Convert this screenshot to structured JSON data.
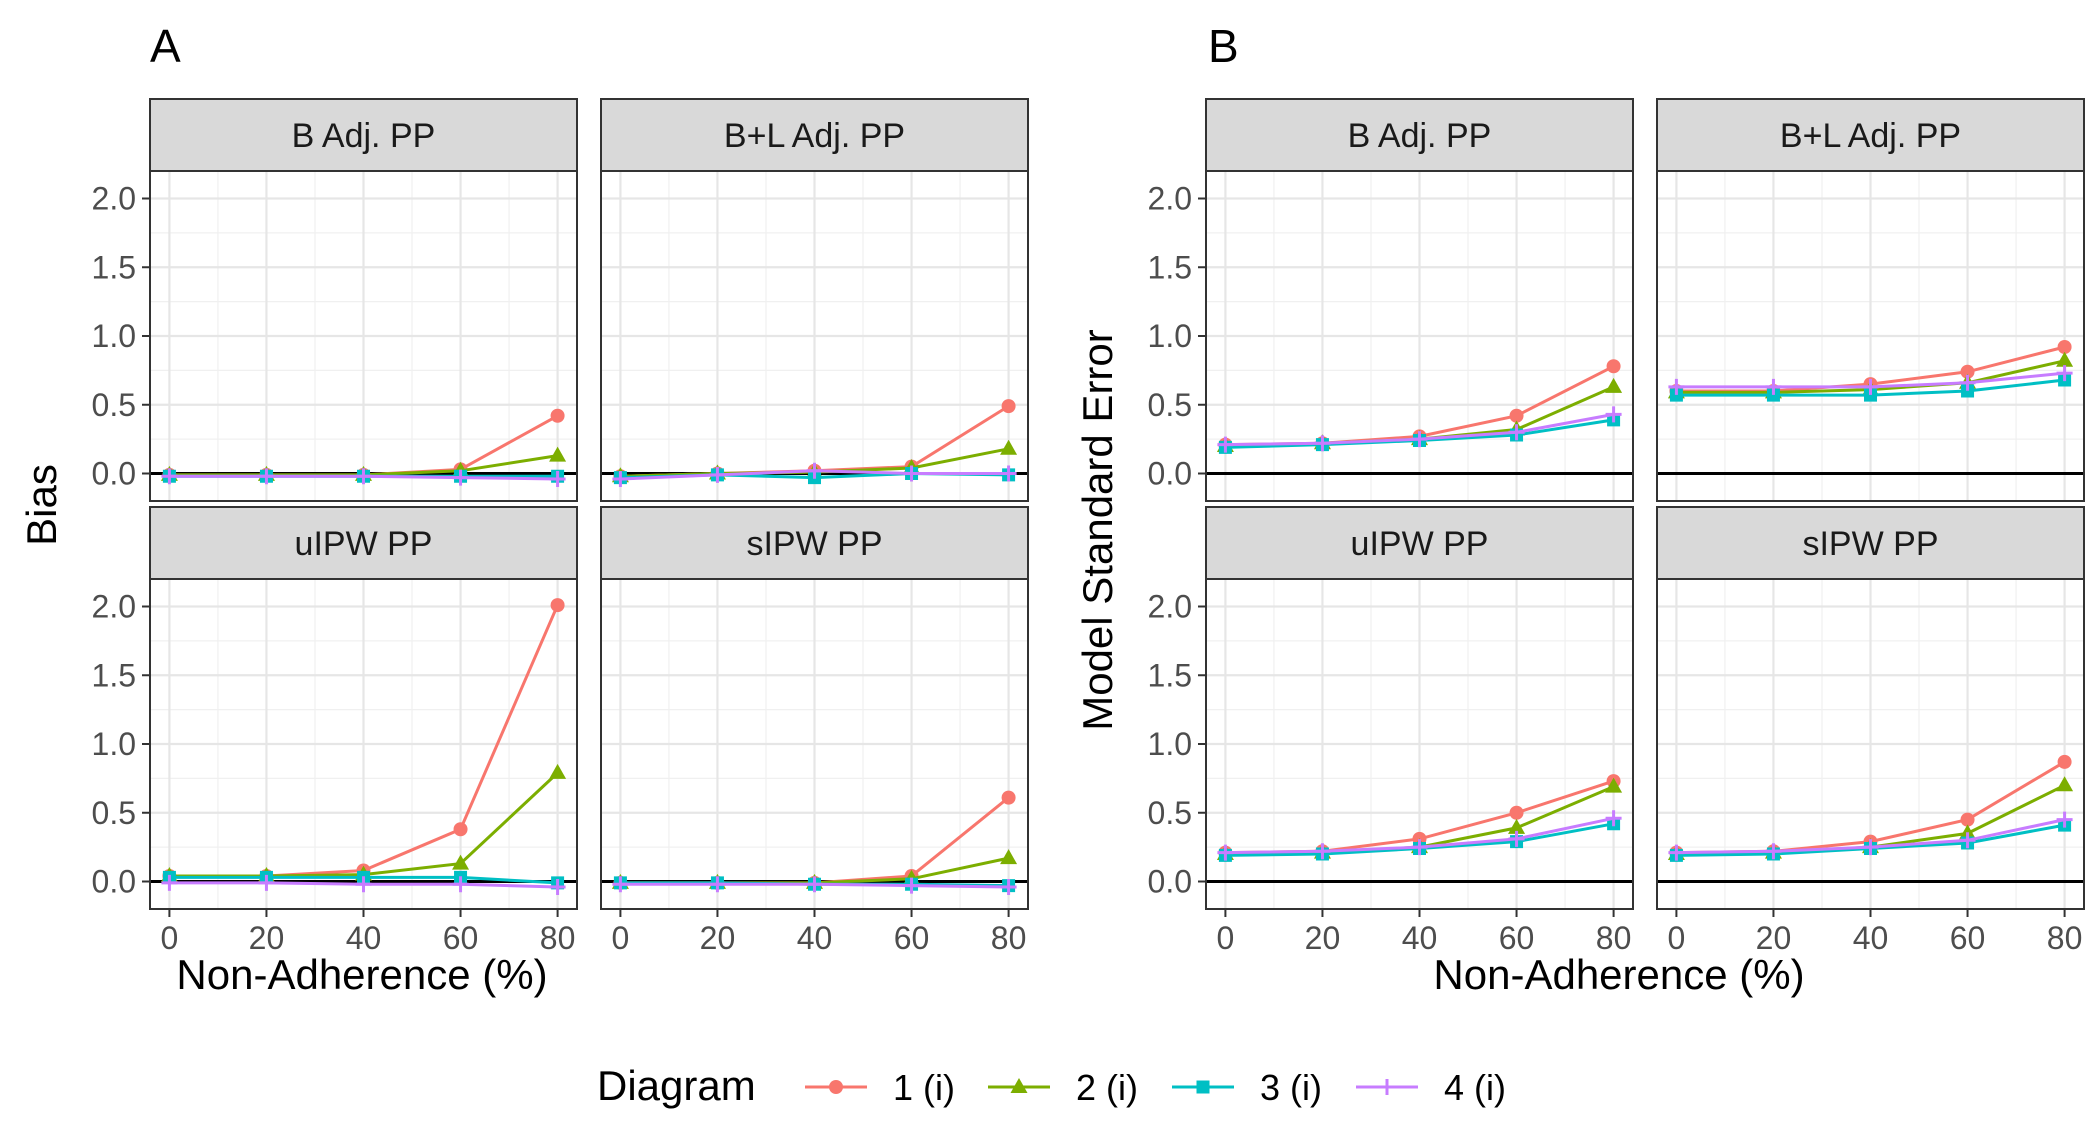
{
  "chart_data": [
    {
      "type": "line",
      "panel_label": "A",
      "xlabel": "Non-Adherence (%)",
      "ylabel": "Bias",
      "x": [
        0,
        20,
        40,
        60,
        80
      ],
      "xticks": [
        "0",
        "20",
        "40",
        "60",
        "80"
      ],
      "yticks": [
        "0.0",
        "0.5",
        "1.0",
        "1.5",
        "2.0"
      ],
      "xlim": [
        -4,
        84
      ],
      "ylim": [
        -0.2,
        2.2
      ],
      "grid": true,
      "reference_line_y": 0,
      "facets": [
        {
          "title": "B Adj. PP",
          "series": [
            {
              "name": "1 (i)",
              "values": [
                -0.01,
                -0.01,
                -0.01,
                0.03,
                0.42
              ]
            },
            {
              "name": "2 (i)",
              "values": [
                -0.01,
                -0.01,
                -0.01,
                0.02,
                0.13
              ]
            },
            {
              "name": "3 (i)",
              "values": [
                -0.02,
                -0.02,
                -0.02,
                -0.02,
                -0.02
              ]
            },
            {
              "name": "4 (i)",
              "values": [
                -0.02,
                -0.02,
                -0.02,
                -0.03,
                -0.04
              ]
            }
          ]
        },
        {
          "title": "B+L Adj. PP",
          "series": [
            {
              "name": "1 (i)",
              "values": [
                -0.02,
                0.0,
                0.02,
                0.05,
                0.49
              ]
            },
            {
              "name": "2 (i)",
              "values": [
                -0.02,
                0.0,
                0.01,
                0.04,
                0.18
              ]
            },
            {
              "name": "3 (i)",
              "values": [
                -0.03,
                -0.01,
                -0.03,
                0.0,
                -0.01
              ]
            },
            {
              "name": "4 (i)",
              "values": [
                -0.04,
                -0.01,
                0.02,
                0.0,
                0.0
              ]
            }
          ]
        },
        {
          "title": "uIPW PP",
          "series": [
            {
              "name": "1 (i)",
              "values": [
                0.04,
                0.04,
                0.08,
                0.38,
                2.01
              ]
            },
            {
              "name": "2 (i)",
              "values": [
                0.04,
                0.04,
                0.05,
                0.13,
                0.79
              ]
            },
            {
              "name": "3 (i)",
              "values": [
                0.03,
                0.03,
                0.03,
                0.03,
                -0.01
              ]
            },
            {
              "name": "4 (i)",
              "values": [
                -0.01,
                -0.01,
                -0.02,
                -0.02,
                -0.04
              ]
            }
          ]
        },
        {
          "title": "sIPW PP",
          "series": [
            {
              "name": "1 (i)",
              "values": [
                -0.01,
                -0.01,
                -0.01,
                0.04,
                0.61
              ]
            },
            {
              "name": "2 (i)",
              "values": [
                -0.01,
                -0.01,
                -0.01,
                0.02,
                0.17
              ]
            },
            {
              "name": "3 (i)",
              "values": [
                -0.01,
                -0.01,
                -0.02,
                -0.02,
                -0.03
              ]
            },
            {
              "name": "4 (i)",
              "values": [
                -0.02,
                -0.02,
                -0.02,
                -0.03,
                -0.04
              ]
            }
          ]
        }
      ]
    },
    {
      "type": "line",
      "panel_label": "B",
      "xlabel": "Non-Adherence (%)",
      "ylabel": "Model Standard Error",
      "x": [
        0,
        20,
        40,
        60,
        80
      ],
      "xticks": [
        "0",
        "20",
        "40",
        "60",
        "80"
      ],
      "yticks": [
        "0.0",
        "0.5",
        "1.0",
        "1.5",
        "2.0"
      ],
      "xlim": [
        -4,
        84
      ],
      "ylim": [
        -0.2,
        2.2
      ],
      "grid": true,
      "reference_line_y": 0,
      "facets": [
        {
          "title": "B Adj. PP",
          "series": [
            {
              "name": "1 (i)",
              "values": [
                0.21,
                0.22,
                0.27,
                0.42,
                0.78
              ]
            },
            {
              "name": "2 (i)",
              "values": [
                0.2,
                0.22,
                0.25,
                0.32,
                0.63
              ]
            },
            {
              "name": "3 (i)",
              "values": [
                0.19,
                0.21,
                0.24,
                0.28,
                0.39
              ]
            },
            {
              "name": "4 (i)",
              "values": [
                0.21,
                0.22,
                0.25,
                0.3,
                0.43
              ]
            }
          ]
        },
        {
          "title": "B+L Adj. PP",
          "series": [
            {
              "name": "1 (i)",
              "values": [
                0.6,
                0.6,
                0.65,
                0.74,
                0.92
              ]
            },
            {
              "name": "2 (i)",
              "values": [
                0.59,
                0.59,
                0.61,
                0.66,
                0.82
              ]
            },
            {
              "name": "3 (i)",
              "values": [
                0.57,
                0.57,
                0.57,
                0.6,
                0.68
              ]
            },
            {
              "name": "4 (i)",
              "values": [
                0.63,
                0.63,
                0.63,
                0.66,
                0.73
              ]
            }
          ]
        },
        {
          "title": "uIPW PP",
          "series": [
            {
              "name": "1 (i)",
              "values": [
                0.21,
                0.22,
                0.31,
                0.5,
                0.73
              ]
            },
            {
              "name": "2 (i)",
              "values": [
                0.2,
                0.21,
                0.25,
                0.39,
                0.69
              ]
            },
            {
              "name": "3 (i)",
              "values": [
                0.19,
                0.2,
                0.24,
                0.29,
                0.42
              ]
            },
            {
              "name": "4 (i)",
              "values": [
                0.21,
                0.22,
                0.25,
                0.31,
                0.46
              ]
            }
          ]
        },
        {
          "title": "sIPW PP",
          "series": [
            {
              "name": "1 (i)",
              "values": [
                0.21,
                0.22,
                0.29,
                0.45,
                0.87
              ]
            },
            {
              "name": "2 (i)",
              "values": [
                0.2,
                0.21,
                0.25,
                0.35,
                0.7
              ]
            },
            {
              "name": "3 (i)",
              "values": [
                0.19,
                0.2,
                0.24,
                0.28,
                0.41
              ]
            },
            {
              "name": "4 (i)",
              "values": [
                0.21,
                0.22,
                0.25,
                0.3,
                0.45
              ]
            }
          ]
        }
      ]
    }
  ],
  "legend": {
    "title": "Diagram",
    "position": "bottom",
    "items": [
      {
        "label": "1 (i)",
        "color": "#F8766D",
        "shape": "circle"
      },
      {
        "label": "2 (i)",
        "color": "#7CAE00",
        "shape": "triangle"
      },
      {
        "label": "3 (i)",
        "color": "#00BFC4",
        "shape": "square"
      },
      {
        "label": "4 (i)",
        "color": "#C77CFF",
        "shape": "cross"
      }
    ]
  }
}
